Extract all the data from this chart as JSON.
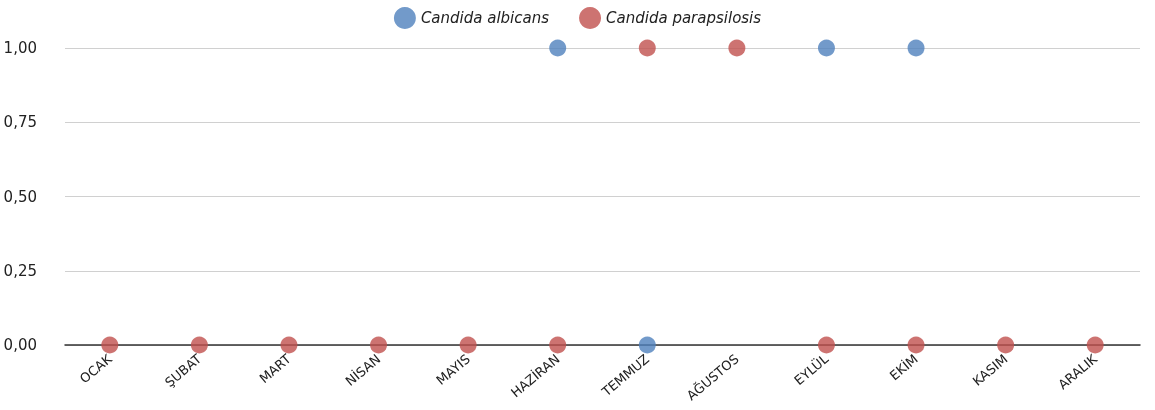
{
  "chart_data": {
    "type": "scatter",
    "categories": [
      "OCAK",
      "ŞUBAT",
      "MART",
      "NİSAN",
      "MAYIS",
      "HAZİRAN",
      "TEMMUZ",
      "AĞUSTOS",
      "EYLÜL",
      "EKİM",
      "KASIM",
      "ARALIK"
    ],
    "series": [
      {
        "name": "Candida albicans",
        "color": "#4f81bd",
        "values": [
          null,
          null,
          null,
          null,
          null,
          1,
          0,
          null,
          1,
          1,
          null,
          null
        ]
      },
      {
        "name": "Candida parapsilosis",
        "color": "#c0504d",
        "values": [
          0,
          0,
          0,
          0,
          0,
          0,
          1,
          1,
          0,
          0,
          0,
          0
        ]
      }
    ],
    "ylim": [
      0,
      1
    ],
    "yticks": [
      {
        "value": 0,
        "label": "0,00"
      },
      {
        "value": 0.25,
        "label": "0,25"
      },
      {
        "value": 0.5,
        "label": "0,50"
      },
      {
        "value": 0.75,
        "label": "0,75"
      },
      {
        "value": 1,
        "label": "1,00"
      }
    ],
    "grid": "y",
    "legend": "top",
    "marker": "circle"
  }
}
